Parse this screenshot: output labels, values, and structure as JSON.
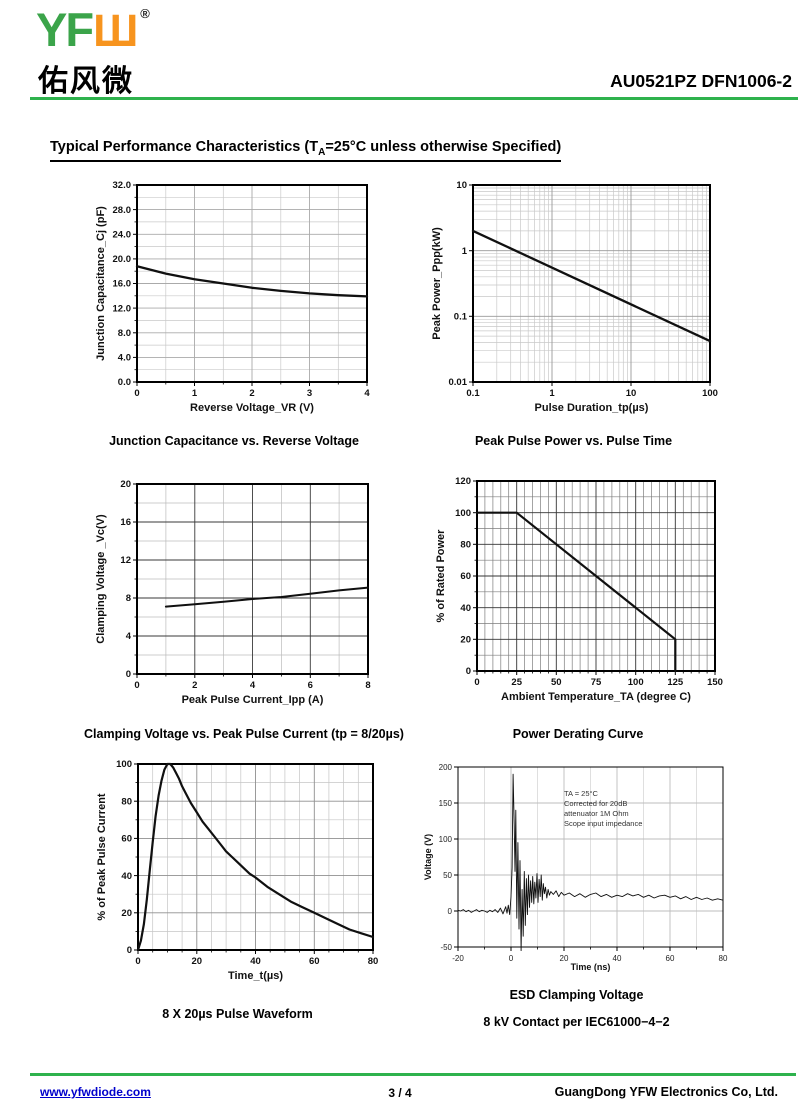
{
  "colors": {
    "logo_green": "#3BA44A",
    "logo_orange": "#F7941E",
    "rule_green": "#2EB24D",
    "link_blue": "#0000CC"
  },
  "header": {
    "logo_yf": "YF",
    "logo_w": "Ш",
    "registered": "®",
    "logo_chinese": "佑风微",
    "part_number": "AU0521PZ DFN1006-2"
  },
  "title": {
    "pre": "Typical Performance Characteristics (T",
    "sub": "A",
    "post": "=25°C unless otherwise Specified)"
  },
  "chart_data": [
    {
      "type": "line",
      "title": "Junction Capacitance vs. Reverse Voltage",
      "xlabel": "Reverse Voltage_VR (V)",
      "ylabel": "Junction Capacitance_Cj (pF)",
      "x": {
        "min": 0,
        "max": 4,
        "log": false,
        "ticks": [
          {
            "v": 0,
            "l": "0"
          },
          {
            "v": 1,
            "l": "1"
          },
          {
            "v": 2,
            "l": "2"
          },
          {
            "v": 3,
            "l": "3"
          },
          {
            "v": 4,
            "l": "4"
          }
        ],
        "minor": [
          0.5,
          1.5,
          2.5,
          3.5
        ]
      },
      "y": {
        "min": 0,
        "max": 32,
        "log": false,
        "ticks": [
          {
            "v": 0,
            "l": "0.0"
          },
          {
            "v": 4,
            "l": "4.0"
          },
          {
            "v": 8,
            "l": "8.0"
          },
          {
            "v": 12,
            "l": "12.0"
          },
          {
            "v": 16,
            "l": "16.0"
          },
          {
            "v": 20,
            "l": "20.0"
          },
          {
            "v": 24,
            "l": "24.0"
          },
          {
            "v": 28,
            "l": "28.0"
          },
          {
            "v": 32,
            "l": "32.0"
          }
        ],
        "minor": [
          2,
          6,
          10,
          14,
          18,
          22,
          26,
          30
        ]
      },
      "colors": {
        "major": "#aaaaaa",
        "minor": "#c9c9c9"
      },
      "frame": 2,
      "lw": 2.3,
      "series": [
        [
          0,
          18.8
        ],
        [
          0.5,
          17.6
        ],
        [
          1,
          16.7
        ],
        [
          1.5,
          16.0
        ],
        [
          2,
          15.3
        ],
        [
          2.5,
          14.8
        ],
        [
          3,
          14.4
        ],
        [
          3.5,
          14.1
        ],
        [
          4,
          13.9
        ]
      ]
    },
    {
      "type": "line",
      "title": "Peak Pulse Power vs. Pulse Time",
      "xlabel": "Pulse Duration_tp(µs)",
      "ylabel": "Peak Power_Ppp(kW)",
      "x": {
        "min": 0.1,
        "max": 100,
        "log": true,
        "ticks": [
          {
            "v": 0.1,
            "l": "0.1"
          },
          {
            "v": 1,
            "l": "1"
          },
          {
            "v": 10,
            "l": "10"
          },
          {
            "v": 100,
            "l": "100"
          }
        ],
        "minor": [
          0.2,
          0.3,
          0.4,
          0.5,
          0.6,
          0.7,
          0.8,
          0.9,
          2,
          3,
          4,
          5,
          6,
          7,
          8,
          9,
          20,
          30,
          40,
          50,
          60,
          70,
          80,
          90
        ]
      },
      "y": {
        "min": 0.01,
        "max": 10,
        "log": true,
        "ticks": [
          {
            "v": 0.01,
            "l": "0.01"
          },
          {
            "v": 0.1,
            "l": "0.1"
          },
          {
            "v": 1,
            "l": "1"
          },
          {
            "v": 10,
            "l": "10"
          }
        ],
        "minor": [
          0.02,
          0.03,
          0.04,
          0.05,
          0.06,
          0.07,
          0.08,
          0.09,
          0.2,
          0.3,
          0.4,
          0.5,
          0.6,
          0.7,
          0.8,
          0.9,
          2,
          3,
          4,
          5,
          6,
          7,
          8,
          9
        ]
      },
      "colors": {
        "major": "#999999",
        "minor": "#c9c9c9"
      },
      "frame": 2,
      "lw": 2.3,
      "series": [
        [
          0.1,
          2
        ],
        [
          100,
          0.042
        ]
      ]
    },
    {
      "type": "line",
      "title": "Clamping Voltage vs. Peak Pulse Current (tp = 8/20µs)",
      "xlabel": "Peak Pulse Current_Ipp (A)",
      "ylabel": "Clamping Voltage _Vc(V)",
      "x": {
        "min": 0,
        "max": 8,
        "log": false,
        "ticks": [
          {
            "v": 0,
            "l": "0"
          },
          {
            "v": 2,
            "l": "2"
          },
          {
            "v": 4,
            "l": "4"
          },
          {
            "v": 6,
            "l": "6"
          },
          {
            "v": 8,
            "l": "8"
          }
        ],
        "minor": [
          1,
          3,
          5,
          7
        ]
      },
      "y": {
        "min": 0,
        "max": 20,
        "log": false,
        "ticks": [
          {
            "v": 0,
            "l": "0"
          },
          {
            "v": 4,
            "l": "4"
          },
          {
            "v": 8,
            "l": "8"
          },
          {
            "v": 12,
            "l": "12"
          },
          {
            "v": 16,
            "l": "16"
          },
          {
            "v": 20,
            "l": "20"
          }
        ],
        "minor": [
          2,
          6,
          10,
          14,
          18
        ]
      },
      "colors": {
        "major": "#3a3a3a",
        "minor": "#bbbbbb"
      },
      "frame": 2,
      "lw": 2,
      "series": [
        [
          1,
          7.1
        ],
        [
          2,
          7.35
        ],
        [
          3,
          7.6
        ],
        [
          4,
          7.9
        ],
        [
          5,
          8.1
        ],
        [
          6,
          8.45
        ],
        [
          7,
          8.8
        ],
        [
          8,
          9.1
        ]
      ]
    },
    {
      "type": "line",
      "title": "Power Derating Curve",
      "xlabel": "Ambient Temperature_TA (degree C)",
      "ylabel": "% of Rated Power",
      "x": {
        "min": 0,
        "max": 150,
        "log": false,
        "ticks": [
          {
            "v": 0,
            "l": "0"
          },
          {
            "v": 25,
            "l": "25"
          },
          {
            "v": 50,
            "l": "50"
          },
          {
            "v": 75,
            "l": "75"
          },
          {
            "v": 100,
            "l": "100"
          },
          {
            "v": 125,
            "l": "125"
          },
          {
            "v": 150,
            "l": "150"
          }
        ],
        "minor": [
          5,
          10,
          15,
          20,
          30,
          35,
          40,
          45,
          55,
          60,
          65,
          70,
          80,
          85,
          90,
          95,
          105,
          110,
          115,
          120,
          130,
          135,
          140,
          145
        ]
      },
      "y": {
        "min": 0,
        "max": 120,
        "log": false,
        "ticks": [
          {
            "v": 0,
            "l": "0"
          },
          {
            "v": 20,
            "l": "20"
          },
          {
            "v": 40,
            "l": "40"
          },
          {
            "v": 60,
            "l": "60"
          },
          {
            "v": 80,
            "l": "80"
          },
          {
            "v": 100,
            "l": "100"
          },
          {
            "v": 120,
            "l": "120"
          }
        ],
        "minor": [
          10,
          30,
          50,
          70,
          90,
          110
        ]
      },
      "colors": {
        "major": "#333333",
        "minor": "#7d7d7d"
      },
      "frame": 2,
      "lw": 2.2,
      "series": [
        [
          0,
          100
        ],
        [
          25,
          100
        ],
        [
          125,
          20
        ],
        [
          125,
          0
        ]
      ]
    },
    {
      "type": "line",
      "title": "8 X 20µs Pulse Waveform",
      "xlabel": "Time_t(µs)",
      "ylabel": "% of Peak Pulse Current",
      "x": {
        "min": 0,
        "max": 80,
        "log": false,
        "ticks": [
          {
            "v": 0,
            "l": "0"
          },
          {
            "v": 20,
            "l": "20"
          },
          {
            "v": 40,
            "l": "40"
          },
          {
            "v": 60,
            "l": "60"
          },
          {
            "v": 80,
            "l": "80"
          }
        ],
        "minor": [
          5,
          10,
          15,
          25,
          30,
          35,
          45,
          50,
          55,
          65,
          70,
          75
        ]
      },
      "y": {
        "min": 0,
        "max": 100,
        "log": false,
        "ticks": [
          {
            "v": 0,
            "l": "0"
          },
          {
            "v": 20,
            "l": "20"
          },
          {
            "v": 40,
            "l": "40"
          },
          {
            "v": 60,
            "l": "60"
          },
          {
            "v": 80,
            "l": "80"
          },
          {
            "v": 100,
            "l": "100"
          }
        ],
        "minor": [
          10,
          30,
          50,
          70,
          90
        ]
      },
      "colors": {
        "major": "#8f8f8f",
        "minor": "#c6c6c6"
      },
      "frame": 2,
      "lw": 2.2,
      "series": [
        [
          0,
          0
        ],
        [
          1,
          5
        ],
        [
          2,
          14
        ],
        [
          3,
          27
        ],
        [
          4,
          43
        ],
        [
          5,
          58
        ],
        [
          6,
          72
        ],
        [
          7,
          83
        ],
        [
          8,
          91
        ],
        [
          9,
          97
        ],
        [
          10,
          100
        ],
        [
          11,
          100
        ],
        [
          12,
          98
        ],
        [
          13,
          95
        ],
        [
          14,
          92
        ],
        [
          15,
          88
        ],
        [
          16,
          85
        ],
        [
          18,
          79
        ],
        [
          20,
          74
        ],
        [
          22,
          69
        ],
        [
          24,
          65
        ],
        [
          26,
          61
        ],
        [
          28,
          57
        ],
        [
          30,
          53
        ],
        [
          32,
          50
        ],
        [
          34,
          47
        ],
        [
          36,
          44
        ],
        [
          38,
          41
        ],
        [
          40,
          39
        ],
        [
          44,
          34
        ],
        [
          48,
          30
        ],
        [
          52,
          26
        ],
        [
          56,
          23
        ],
        [
          60,
          20
        ],
        [
          64,
          17
        ],
        [
          68,
          14
        ],
        [
          72,
          11
        ],
        [
          76,
          9
        ],
        [
          80,
          7
        ]
      ]
    },
    {
      "type": "line",
      "title": "ESD Clamping Voltage",
      "subtitle": "8 kV Contact per IEC61000−4−2",
      "xlabel": "Time (ns)",
      "ylabel": "Voltage (V)",
      "x": {
        "min": -20,
        "max": 80,
        "log": false,
        "ticks": [
          {
            "v": -20,
            "l": "-20"
          },
          {
            "v": 0,
            "l": "0"
          },
          {
            "v": 20,
            "l": "20"
          },
          {
            "v": 40,
            "l": "40"
          },
          {
            "v": 60,
            "l": "60"
          },
          {
            "v": 80,
            "l": "80"
          }
        ],
        "minor": [
          -10,
          10,
          30,
          50,
          70
        ]
      },
      "y": {
        "min": -50,
        "max": 200,
        "log": false,
        "ticks": [
          {
            "v": -50,
            "l": "-50"
          },
          {
            "v": 0,
            "l": "0"
          },
          {
            "v": 50,
            "l": "50"
          },
          {
            "v": 100,
            "l": "100"
          },
          {
            "v": 150,
            "l": "150"
          },
          {
            "v": 200,
            "l": "200"
          }
        ],
        "minor": []
      },
      "colors": {
        "major": "#bdbdbd",
        "minor": "#d2d2d2"
      },
      "frame": 1,
      "lw": 0.9,
      "annotation": {
        "fx": 0.4,
        "fy": 0.16,
        "lines": [
          "TA = 25°C",
          "Corrected for 20dB",
          "attenuator 1M Ohm",
          "Scope input impedance"
        ]
      },
      "series": [
        [
          -20,
          1
        ],
        [
          -19,
          0
        ],
        [
          -18,
          2
        ],
        [
          -17,
          -1
        ],
        [
          -16,
          1
        ],
        [
          -15,
          -2
        ],
        [
          -14,
          0
        ],
        [
          -13,
          2
        ],
        [
          -12,
          -1
        ],
        [
          -11,
          1
        ],
        [
          -10,
          0
        ],
        [
          -9,
          -2
        ],
        [
          -8,
          1
        ],
        [
          -7,
          -1
        ],
        [
          -6,
          2
        ],
        [
          -5,
          -2
        ],
        [
          -4,
          4
        ],
        [
          -3,
          -4
        ],
        [
          -2,
          6
        ],
        [
          -1.5,
          -3
        ],
        [
          -1,
          8
        ],
        [
          -0.5,
          -5
        ],
        [
          0,
          20
        ],
        [
          0.4,
          60
        ],
        [
          0.8,
          190
        ],
        [
          1.2,
          120
        ],
        [
          1.5,
          55
        ],
        [
          1.8,
          140
        ],
        [
          2.2,
          -10
        ],
        [
          2.6,
          95
        ],
        [
          3,
          -25
        ],
        [
          3.4,
          70
        ],
        [
          3.8,
          -55
        ],
        [
          4.2,
          30
        ],
        [
          4.6,
          -35
        ],
        [
          5,
          55
        ],
        [
          5.4,
          -20
        ],
        [
          5.8,
          45
        ],
        [
          6.2,
          -5
        ],
        [
          6.6,
          50
        ],
        [
          7,
          5
        ],
        [
          7.4,
          42
        ],
        [
          7.8,
          12
        ],
        [
          8.2,
          48
        ],
        [
          8.6,
          10
        ],
        [
          9,
          40
        ],
        [
          9.4,
          18
        ],
        [
          9.8,
          52
        ],
        [
          10.2,
          12
        ],
        [
          10.6,
          44
        ],
        [
          11,
          20
        ],
        [
          11.4,
          50
        ],
        [
          11.8,
          15
        ],
        [
          12.2,
          38
        ],
        [
          12.6,
          24
        ],
        [
          13,
          33
        ],
        [
          13.5,
          18
        ],
        [
          14,
          30
        ],
        [
          14.5,
          22
        ],
        [
          15,
          27
        ],
        [
          16,
          23
        ],
        [
          17,
          28
        ],
        [
          18,
          20
        ],
        [
          19,
          26
        ],
        [
          20,
          22
        ],
        [
          22,
          25
        ],
        [
          24,
          20
        ],
        [
          26,
          24
        ],
        [
          28,
          19
        ],
        [
          30,
          23
        ],
        [
          32,
          25
        ],
        [
          34,
          20
        ],
        [
          36,
          23
        ],
        [
          38,
          19
        ],
        [
          40,
          22
        ],
        [
          42,
          20
        ],
        [
          44,
          24
        ],
        [
          46,
          21
        ],
        [
          48,
          23
        ],
        [
          50,
          19
        ],
        [
          52,
          22
        ],
        [
          54,
          18
        ],
        [
          56,
          21
        ],
        [
          58,
          22
        ],
        [
          60,
          19
        ],
        [
          62,
          21
        ],
        [
          64,
          17
        ],
        [
          66,
          20
        ],
        [
          68,
          16
        ],
        [
          70,
          19
        ],
        [
          72,
          16
        ],
        [
          74,
          18
        ],
        [
          76,
          15
        ],
        [
          78,
          17
        ],
        [
          80,
          15
        ]
      ]
    }
  ],
  "footer": {
    "website": "www.yfwdiode.com",
    "page": "3 / 4",
    "company": "GuangDong YFW Electronics Co, Ltd."
  }
}
